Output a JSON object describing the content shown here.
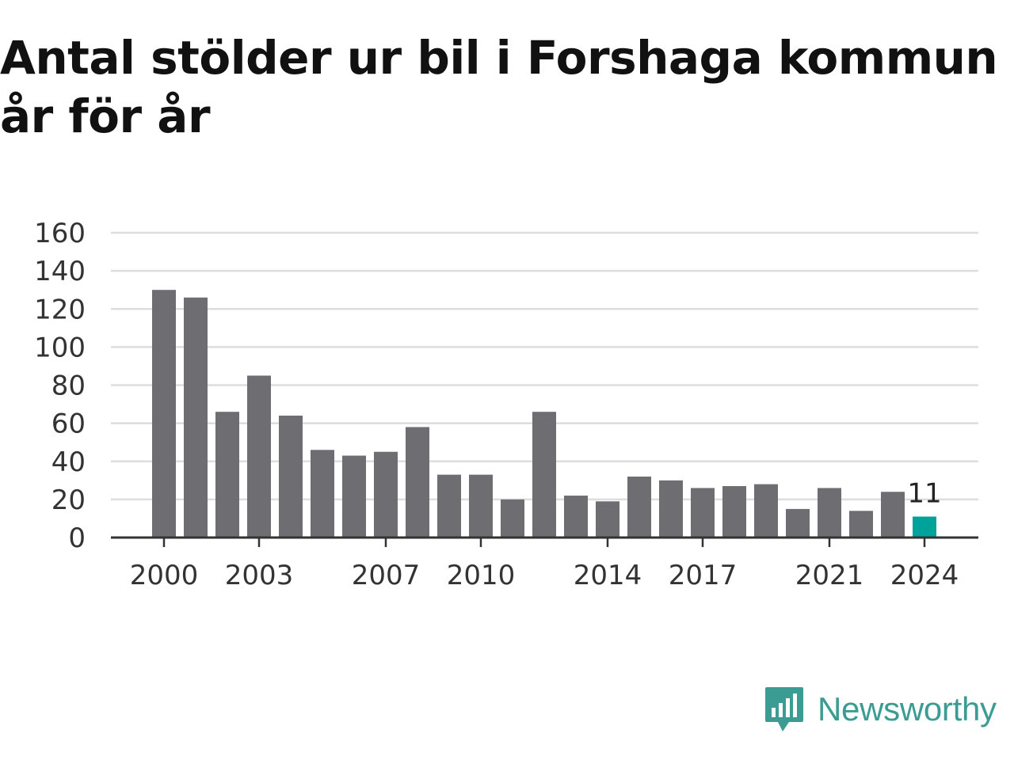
{
  "title": "Antal stölder ur bil i Forshaga kommun år för år",
  "brand": {
    "name": "Newsworthy",
    "icon": "newsworthy-logo-icon",
    "color": "#3a9c93"
  },
  "chart_data": {
    "type": "bar",
    "title": "Antal stölder ur bil i Forshaga kommun år för år",
    "xlabel": "",
    "ylabel": "",
    "ylim": [
      0,
      160
    ],
    "yticks": [
      0,
      20,
      40,
      60,
      80,
      100,
      120,
      140,
      160
    ],
    "xtick_labels": [
      "2000",
      "2003",
      "2007",
      "2010",
      "2014",
      "2017",
      "2021",
      "2024"
    ],
    "grid": true,
    "bar_color": "#6e6d72",
    "highlight_color": "#00a39a",
    "highlight_category": "2024",
    "annotation": {
      "category": "2024",
      "text": "11"
    },
    "categories": [
      "2000",
      "2001",
      "2002",
      "2003",
      "2004",
      "2005",
      "2006",
      "2007",
      "2008",
      "2009",
      "2010",
      "2011",
      "2012",
      "2013",
      "2014",
      "2015",
      "2016",
      "2017",
      "2018",
      "2019",
      "2020",
      "2021",
      "2022",
      "2023",
      "2024"
    ],
    "values": [
      130,
      126,
      66,
      85,
      64,
      46,
      43,
      45,
      58,
      33,
      33,
      20,
      66,
      22,
      19,
      32,
      30,
      26,
      27,
      28,
      15,
      26,
      14,
      24,
      11
    ]
  }
}
